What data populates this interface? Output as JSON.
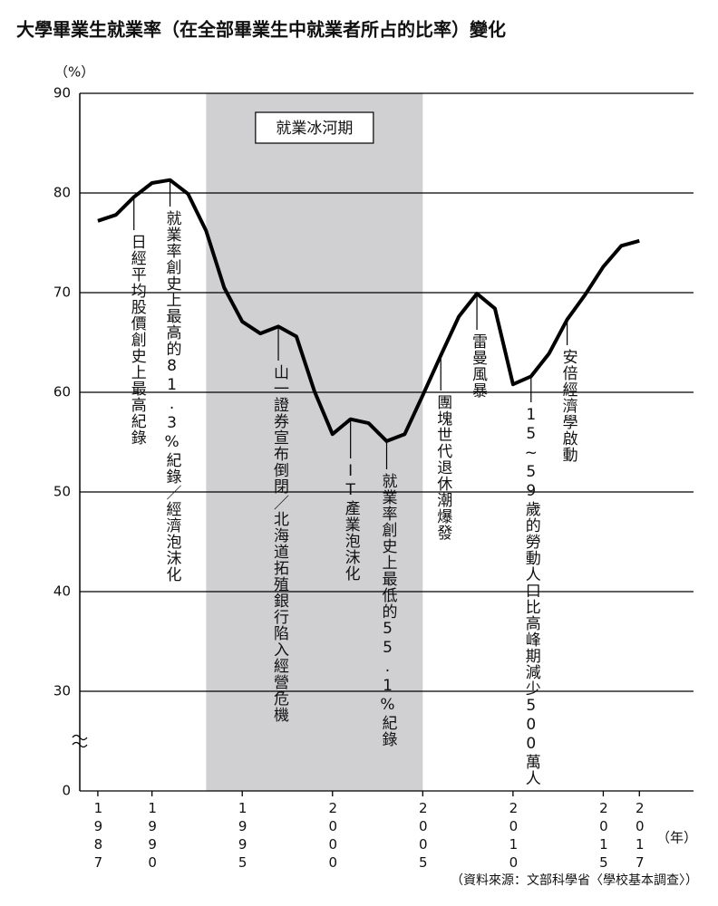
{
  "chart_data": {
    "type": "line",
    "title": "大學畢業生就業率（在全部畢業生中就業者所占的比率）變化",
    "y_unit": "（%）",
    "x_unit": "（年）",
    "source": "（資料來源：文部科學省〈學校基本調查〉）",
    "x": [
      1987,
      1988,
      1989,
      1990,
      1991,
      1992,
      1993,
      1994,
      1995,
      1996,
      1997,
      1998,
      1999,
      2000,
      2001,
      2002,
      2003,
      2004,
      2005,
      2006,
      2007,
      2008,
      2009,
      2010,
      2011,
      2012,
      2013,
      2014,
      2015,
      2016,
      2017
    ],
    "series": [
      {
        "name": "大學畢業生就業率",
        "color": "#000000",
        "values": [
          77.2,
          77.8,
          79.6,
          81.0,
          81.3,
          79.9,
          76.2,
          70.5,
          67.1,
          65.9,
          66.6,
          65.6,
          60.1,
          55.8,
          57.3,
          56.9,
          55.1,
          55.8,
          59.7,
          63.7,
          67.6,
          69.9,
          68.4,
          60.8,
          61.6,
          63.9,
          67.3,
          69.8,
          72.6,
          74.7,
          75.2
        ]
      }
    ],
    "xlim": [
      1986,
      2020
    ],
    "xticks": [
      1987,
      1990,
      1995,
      2000,
      2005,
      2010,
      2015,
      2017
    ],
    "ylim": [
      0,
      90
    ],
    "yticks": [
      0,
      30,
      40,
      50,
      60,
      70,
      80,
      90
    ],
    "axis_break": [
      0,
      30
    ],
    "grid": true,
    "shaded_span": {
      "x": [
        1993,
        2005
      ],
      "label": "就業冰河期",
      "color": "#d0d0d2"
    },
    "annotations": [
      {
        "x": 1989,
        "text": "日經平均股價創史上最高紀錄"
      },
      {
        "x": 1991,
        "text": "就業率創史上最高的81.3%紀錄／經濟泡沫化"
      },
      {
        "x": 1997,
        "text": "山一證券宣布倒閉／北海道拓殖銀行陷入經營危機"
      },
      {
        "x": 2001,
        "text": "IT產業泡沫化"
      },
      {
        "x": 2003,
        "text": "就業率創史上最低的55.1%紀錄"
      },
      {
        "x": 2006,
        "text": "團塊世代退休潮爆發"
      },
      {
        "x": 2008,
        "text": "雷曼風暴"
      },
      {
        "x": 2011,
        "text": "15~59歲的勞動人口比高峰期減少500萬人"
      },
      {
        "x": 2013,
        "text": "安倍經濟學啟動"
      }
    ]
  }
}
